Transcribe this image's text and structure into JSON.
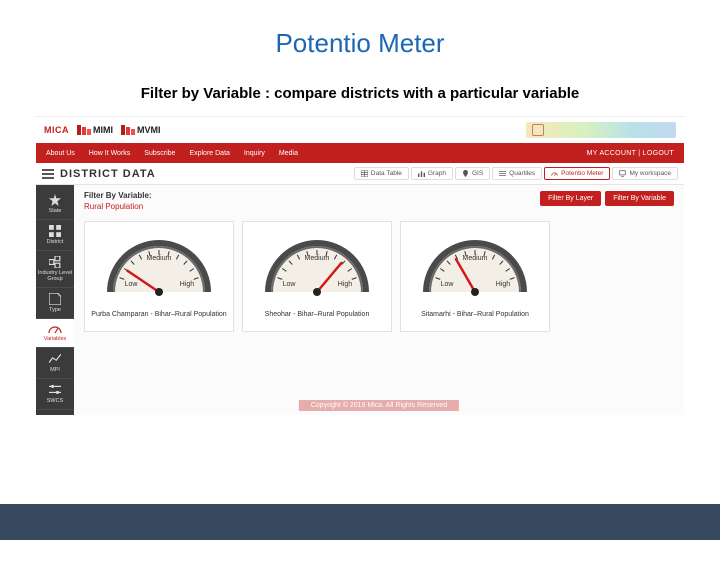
{
  "slide": {
    "title": "Potentio Meter",
    "subtitle": "Filter by Variable : compare districts with a particular variable"
  },
  "logos": {
    "mica": "MICA",
    "mimi": "MIMI",
    "mvmi": "MVMI"
  },
  "nav": {
    "items": [
      "About Us",
      "How It Works",
      "Subscribe",
      "Explore Data",
      "Inquiry",
      "Media"
    ],
    "right": "MY ACCOUNT | LOGOUT"
  },
  "subbar": {
    "title": "DISTRICT DATA",
    "tabs": [
      {
        "label": "Data Table",
        "icon": "table"
      },
      {
        "label": "Graph",
        "icon": "bars"
      },
      {
        "label": "GIS",
        "icon": "pin"
      },
      {
        "label": "Quartiles",
        "icon": "quart"
      },
      {
        "label": "Potentio Meter",
        "icon": "gauge",
        "active": true
      },
      {
        "label": "My workspace",
        "icon": "ws"
      }
    ]
  },
  "sidebar": {
    "items": [
      {
        "label": "State",
        "icon": "star"
      },
      {
        "label": "District",
        "icon": "grid"
      },
      {
        "label": "Industry Level Group",
        "icon": "boxes"
      },
      {
        "label": "Type",
        "icon": "type"
      },
      {
        "label": "Variables",
        "icon": "gauge",
        "active": true
      },
      {
        "label": "MPI",
        "icon": "chart"
      },
      {
        "label": "SWCS",
        "icon": "slider"
      }
    ]
  },
  "filter": {
    "label": "Filter By Variable:",
    "value": "Rural Population",
    "buttons": [
      "Filter By Layer",
      "Filter By Variable"
    ]
  },
  "gauge_style": {
    "rim_outer": "#4a4a4a",
    "rim_inner": "#6a6a6a",
    "face": "#f3efe6",
    "tick": "#333333",
    "needle": "#d11b1b",
    "hub": "#222222",
    "label_color": "#333333",
    "label_low": "Low",
    "label_med": "Medium",
    "label_high": "High",
    "low_angle": 150,
    "high_angle": 30
  },
  "gauges": [
    {
      "caption": "Purba Champaran - Bihar–Rural Population",
      "needle_angle": 34
    },
    {
      "caption": "Sheohar - Bihar–Rural Population",
      "needle_angle": 130
    },
    {
      "caption": "Sitamarhi - Bihar–Rural Population",
      "needle_angle": 60
    }
  ],
  "colors": {
    "brand_red": "#c21f1f",
    "brand_blue": "#1b67b3",
    "footer": "#36495e",
    "sidebar": "#3b3b3b"
  },
  "copyright": "Copyright © 2019 Mica. All Rights Reserved"
}
